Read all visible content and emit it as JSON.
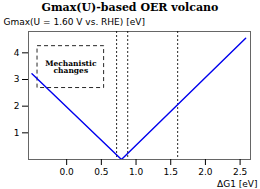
{
  "chart_data": {
    "type": "line",
    "title": "Gmax(U)-based OER volcano",
    "xlabel": "ΔG1 [eV]",
    "ylabel": "Gmax(U = 1.60 V vs. RHE) [eV]",
    "x": [
      -0.5,
      0.79,
      2.58
    ],
    "values": [
      3.22,
      0.0,
      4.55
    ],
    "color": "#0000EE",
    "vlines": [
      0.72,
      0.88,
      1.6
    ],
    "annotations": [
      {
        "text": "Mechanistic\nchanges",
        "x1": -0.42,
        "y1": 2.68,
        "x2": 0.54,
        "y2": 4.25
      }
    ],
    "xlim": [
      -0.55,
      2.65
    ],
    "ylim": [
      0,
      4.8
    ],
    "xticks": [
      {
        "value": 0.0,
        "label": "0.0"
      },
      0.5,
      {
        "value": 1.0,
        "label": "1.0"
      },
      1.5,
      {
        "value": 2.0,
        "label": "2.0"
      },
      2.5
    ],
    "yticks": [
      1,
      2,
      3,
      4
    ],
    "grid": false
  }
}
